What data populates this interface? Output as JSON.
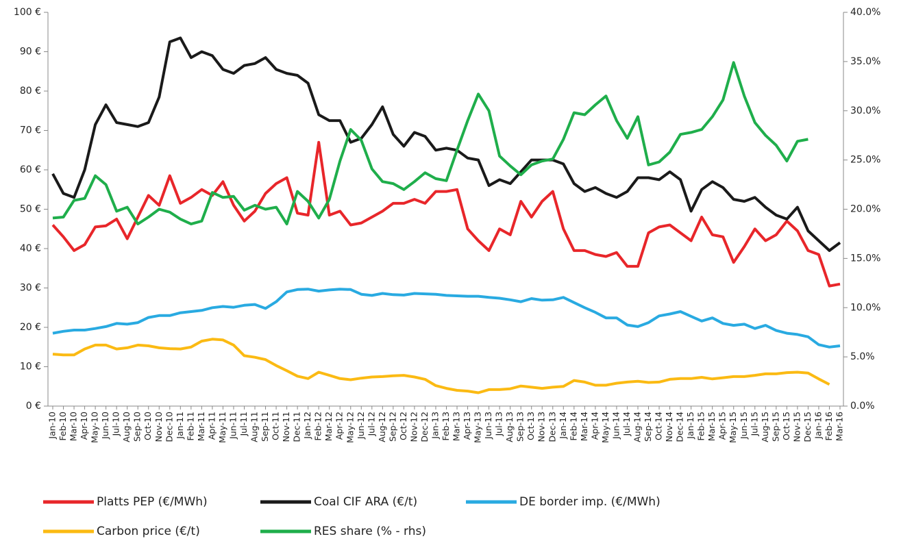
{
  "chart_data": {
    "type": "line",
    "categories": [
      "Jan-10",
      "Feb-10",
      "Mar-10",
      "Apr-10",
      "May-10",
      "Jun-10",
      "Jul-10",
      "Aug-10",
      "Sep-10",
      "Oct-10",
      "Nov-10",
      "Dec-10",
      "Jan-11",
      "Feb-11",
      "Mar-11",
      "Apr-11",
      "May-11",
      "Jun-11",
      "Jul-11",
      "Aug-11",
      "Sep-11",
      "Oct-11",
      "Nov-11",
      "Dec-11",
      "Jan-12",
      "Feb-12",
      "Mar-12",
      "Apr-12",
      "May-12",
      "Jun-12",
      "Jul-12",
      "Aug-12",
      "Sep-12",
      "Oct-12",
      "Nov-12",
      "Dec-12",
      "Jan-13",
      "Feb-13",
      "Mar-13",
      "Apr-13",
      "May-13",
      "Jun-13",
      "Jul-13",
      "Aug-13",
      "Sep-13",
      "Oct-13",
      "Nov-13",
      "Dec-13",
      "Jan-14",
      "Feb-14",
      "Mar-14",
      "Apr-14",
      "May-14",
      "Jun-14",
      "Jul-14",
      "Aug-14",
      "Sep-14",
      "Oct-14",
      "Nov-14",
      "Dec-14",
      "Jan-15",
      "Feb-15",
      "Mar-15",
      "Apr-15",
      "May-15",
      "Jun-15",
      "Jul-15",
      "Aug-15",
      "Sep-15",
      "Oct-15",
      "Nov-15",
      "Dec-15",
      "Jan-16",
      "Feb-16",
      "Mar-16"
    ],
    "series": [
      {
        "name": "Platts PEP (€/MWh)",
        "color": "#e8262a",
        "values": [
          46,
          43,
          39.5,
          41,
          45.5,
          45.8,
          47.5,
          42.5,
          48,
          53.5,
          51,
          58.5,
          51.5,
          53,
          55,
          53.5,
          57,
          51,
          47,
          49.5,
          54,
          56.5,
          58,
          49,
          48.5,
          67,
          48.5,
          49.5,
          46,
          46.5,
          48,
          49.5,
          51.5,
          51.5,
          52.5,
          51.5,
          54.5,
          54.5,
          55,
          45,
          42,
          39.5,
          45,
          43.5,
          52,
          48,
          52,
          54.5,
          45,
          39.5,
          39.5,
          38.5,
          38,
          39,
          35.5,
          35.5,
          44,
          45.5,
          46,
          44,
          42,
          48,
          43.5,
          43,
          36.5,
          40.5,
          45,
          42,
          43.5,
          47,
          44.5,
          39.5,
          38.5,
          30.5,
          31
        ]
      },
      {
        "name": "Coal CIF ARA (€/t)",
        "color": "#1a1a1a",
        "values": [
          59,
          54,
          53,
          60,
          71.5,
          76.5,
          72,
          71.5,
          71,
          72,
          78.5,
          92.5,
          93.5,
          88.5,
          90,
          89,
          85.5,
          84.5,
          86.5,
          87,
          88.5,
          85.5,
          84.5,
          84,
          82,
          74,
          72.5,
          72.5,
          67,
          68,
          71.5,
          76,
          69,
          66,
          69.5,
          68.5,
          65,
          65.5,
          65,
          63,
          62.5,
          56,
          57.5,
          56.5,
          59.5,
          62.5,
          62.5,
          62.5,
          61.5,
          56.5,
          54.5,
          55.5,
          54,
          53,
          54.5,
          58,
          58,
          57.5,
          59.5,
          57.5,
          49.5,
          55,
          57,
          55.5,
          52.5,
          52,
          53,
          50.5,
          48.5,
          47.5,
          50.5,
          44.5,
          42,
          39.5,
          41.5
        ]
      },
      {
        "name": "DE border imp. (€/MWh)",
        "color": "#29aae1",
        "values": [
          18.5,
          19,
          19.3,
          19.3,
          19.7,
          20.2,
          21,
          20.8,
          21.2,
          22.5,
          23,
          23,
          23.7,
          24,
          24.3,
          25,
          25.3,
          25.1,
          25.6,
          25.8,
          24.8,
          26.5,
          29,
          29.6,
          29.7,
          29.2,
          29.5,
          29.7,
          29.6,
          28.4,
          28.1,
          28.6,
          28.3,
          28.2,
          28.6,
          28.5,
          28.4,
          28.1,
          28,
          27.9,
          27.9,
          27.6,
          27.4,
          27,
          26.5,
          27.3,
          26.9,
          27,
          27.6,
          26.3,
          25,
          23.8,
          22.4,
          22.4,
          20.6,
          20.2,
          21.2,
          22.9,
          23.4,
          24,
          22.8,
          21.6,
          22.4,
          21,
          20.5,
          20.8,
          19.7,
          20.5,
          19.2,
          18.5,
          18.2,
          17.6,
          15.6,
          15,
          15.3
        ]
      },
      {
        "name": "Carbon price (€/t)",
        "color": "#fbba13",
        "values": [
          13.2,
          13,
          13,
          14.5,
          15.5,
          15.5,
          14.5,
          14.8,
          15.5,
          15.3,
          14.8,
          14.6,
          14.5,
          15,
          16.5,
          17,
          16.8,
          15.5,
          12.8,
          12.4,
          11.8,
          10.3,
          9,
          7.6,
          7,
          8.6,
          7.8,
          7,
          6.7,
          7.1,
          7.4,
          7.5,
          7.7,
          7.8,
          7.4,
          6.8,
          5.2,
          4.5,
          4,
          3.8,
          3.4,
          4.2,
          4.2,
          4.4,
          5.1,
          4.8,
          4.5,
          4.8,
          5,
          6.5,
          6.1,
          5.3,
          5.3,
          5.8,
          6.1,
          6.3,
          6,
          6.1,
          6.8,
          7,
          7,
          7.3,
          6.9,
          7.2,
          7.5,
          7.5,
          7.8,
          8.2,
          8.2,
          8.5,
          8.6,
          8.4,
          6.9,
          5.5,
          null
        ]
      },
      {
        "name": "RES share (% - rhs)",
        "color": "#1fae4b",
        "axis": "y2",
        "values": [
          19.1,
          19.2,
          20.9,
          21.1,
          23.4,
          22.5,
          19.8,
          20.2,
          18.5,
          19.2,
          20,
          19.7,
          19,
          18.5,
          18.8,
          21.7,
          21.2,
          21.3,
          19.9,
          20.4,
          20,
          20.2,
          18.5,
          21.8,
          20.8,
          19.1,
          21,
          24.9,
          28.1,
          27,
          24.1,
          22.8,
          22.6,
          22,
          22.8,
          23.7,
          23.1,
          22.9,
          26,
          29,
          31.7,
          30,
          25.4,
          24.4,
          23.5,
          24.5,
          24.9,
          25.1,
          27.1,
          29.8,
          29.6,
          30.6,
          31.5,
          29,
          27.2,
          29.4,
          24.5,
          24.8,
          25.8,
          27.6,
          27.8,
          28.1,
          29.4,
          31.1,
          34.9,
          31.5,
          28.8,
          27.5,
          26.5,
          24.9,
          26.9,
          27.1,
          null,
          null,
          null
        ]
      }
    ],
    "ylim": [
      0,
      100
    ],
    "yticks": [
      {
        "value": 0,
        "label": "0 €"
      },
      {
        "value": 10,
        "label": "10 €"
      },
      {
        "value": 20,
        "label": "20 €"
      },
      {
        "value": 30,
        "label": "30 €"
      },
      {
        "value": 40,
        "label": "40 €"
      },
      {
        "value": 50,
        "label": "50 €"
      },
      {
        "value": 60,
        "label": "60 €"
      },
      {
        "value": 70,
        "label": "70 €"
      },
      {
        "value": 80,
        "label": "80 €"
      },
      {
        "value": 90,
        "label": "90 €"
      },
      {
        "value": 100,
        "label": "100 €"
      }
    ],
    "y2lim": [
      0,
      40
    ],
    "y2ticks": [
      {
        "value": 0,
        "label": "0.0%"
      },
      {
        "value": 5,
        "label": "5.0%"
      },
      {
        "value": 10,
        "label": "10.0%"
      },
      {
        "value": 15,
        "label": "15.0%"
      },
      {
        "value": 20,
        "label": "20.0%"
      },
      {
        "value": 25,
        "label": "25.0%"
      },
      {
        "value": 30,
        "label": "30.0%"
      },
      {
        "value": 35,
        "label": "35.0%"
      },
      {
        "value": 40,
        "label": "40.0%"
      }
    ]
  }
}
